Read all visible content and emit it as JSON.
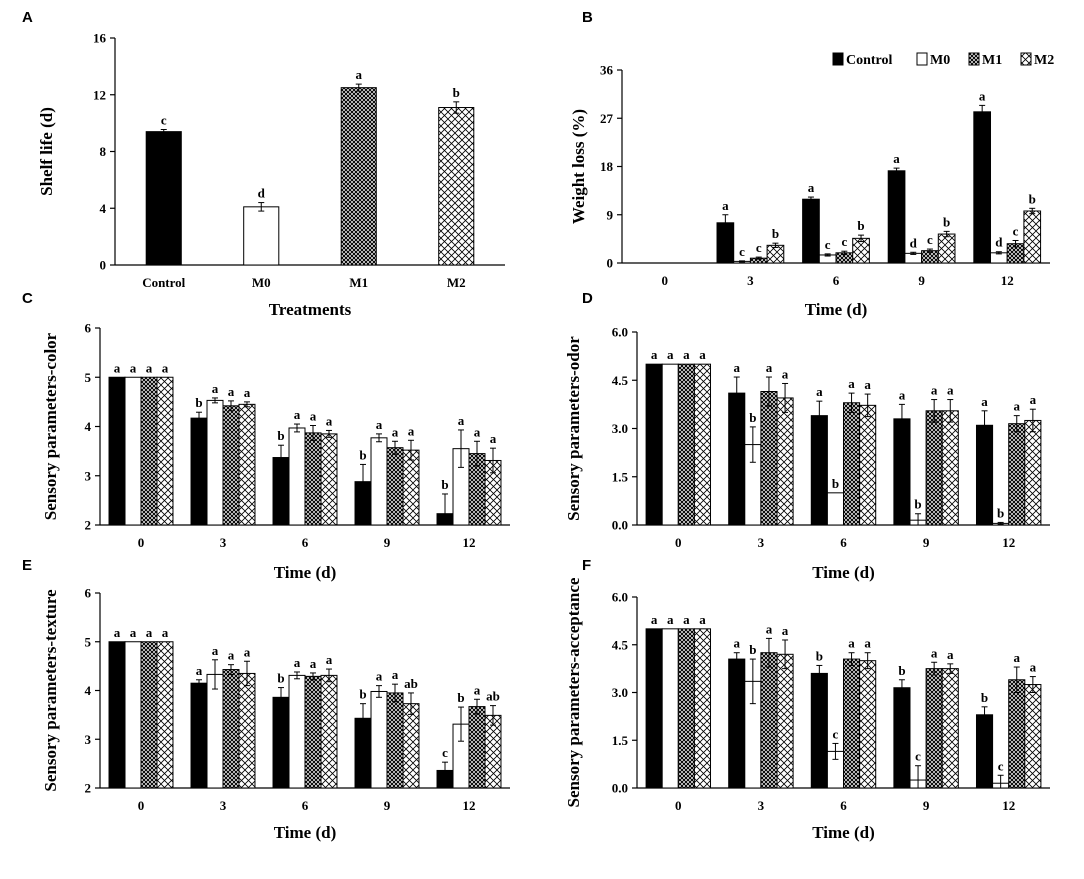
{
  "colors": {
    "control": "#000000",
    "m0": "#ffffff",
    "axis": "#000000"
  },
  "legend": [
    "Control",
    "M0",
    "M1",
    "M2"
  ],
  "chart_data": [
    {
      "id": "A",
      "type": "bar",
      "letter": "A",
      "xlabel": "Treatments",
      "ylabel": "Shelf life (d)",
      "ylim": [
        0,
        16
      ],
      "yticks": [
        "0",
        "4",
        "8",
        "12",
        "16"
      ],
      "categories": [
        "Control",
        "M0",
        "M1",
        "M2"
      ],
      "values": [
        9.4,
        4.1,
        12.5,
        11.1
      ],
      "errors": [
        0.15,
        0.3,
        0.25,
        0.4
      ],
      "labels": [
        "c",
        "d",
        "a",
        "b"
      ]
    },
    {
      "id": "B",
      "type": "bar",
      "letter": "B",
      "xlabel": "Time (d)",
      "ylabel": "Weight loss (%)",
      "ylim": [
        0,
        36
      ],
      "yticks": [
        "0",
        "9",
        "18",
        "27",
        "36"
      ],
      "categories": [
        "0",
        "3",
        "6",
        "9",
        "12"
      ],
      "series": [
        {
          "name": "Control",
          "values": [
            0,
            7.5,
            11.9,
            17.2,
            28.2
          ],
          "errors": [
            0,
            1.5,
            0.4,
            0.5,
            1.2
          ],
          "labels": [
            "",
            "a",
            "a",
            "a",
            "a"
          ]
        },
        {
          "name": "M0",
          "values": [
            0,
            0.3,
            1.5,
            1.8,
            1.9
          ],
          "errors": [
            0,
            0.1,
            0.2,
            0.2,
            0.2
          ],
          "labels": [
            "",
            "c",
            "c",
            "d",
            "d"
          ]
        },
        {
          "name": "M1",
          "values": [
            0,
            0.9,
            1.9,
            2.3,
            3.6
          ],
          "errors": [
            0,
            0.2,
            0.3,
            0.3,
            0.6
          ],
          "labels": [
            "",
            "c",
            "c",
            "c",
            "c"
          ]
        },
        {
          "name": "M2",
          "values": [
            0,
            3.3,
            4.6,
            5.4,
            9.7
          ],
          "errors": [
            0,
            0.4,
            0.6,
            0.5,
            0.5
          ],
          "labels": [
            "",
            "b",
            "b",
            "b",
            "b"
          ]
        }
      ]
    },
    {
      "id": "C",
      "type": "bar",
      "letter": "C",
      "xlabel": "Time (d)",
      "ylabel": "Sensory parameters-color",
      "ylim": [
        2,
        6
      ],
      "yticks": [
        "2",
        "3",
        "4",
        "5",
        "6"
      ],
      "categories": [
        "0",
        "3",
        "6",
        "9",
        "12"
      ],
      "series": [
        {
          "name": "Control",
          "values": [
            5,
            4.17,
            3.37,
            2.88,
            2.23
          ],
          "errors": [
            0,
            0.12,
            0.25,
            0.35,
            0.4
          ],
          "labels": [
            "a",
            "b",
            "b",
            "b",
            "b"
          ]
        },
        {
          "name": "M0",
          "values": [
            5,
            4.53,
            3.97,
            3.77,
            3.55
          ],
          "errors": [
            0,
            0.05,
            0.08,
            0.08,
            0.38
          ],
          "labels": [
            "a",
            "a",
            "a",
            "a",
            "a"
          ]
        },
        {
          "name": "M1",
          "values": [
            5,
            4.42,
            3.87,
            3.57,
            3.45
          ],
          "errors": [
            0,
            0.1,
            0.15,
            0.13,
            0.25
          ],
          "labels": [
            "a",
            "a",
            "a",
            "a",
            "a"
          ]
        },
        {
          "name": "M2",
          "values": [
            5,
            4.45,
            3.85,
            3.52,
            3.31
          ],
          "errors": [
            0,
            0.05,
            0.07,
            0.2,
            0.25
          ],
          "labels": [
            "a",
            "a",
            "a",
            "a",
            "a"
          ]
        }
      ]
    },
    {
      "id": "D",
      "type": "bar",
      "letter": "D",
      "xlabel": "Time (d)",
      "ylabel": "Sensory parameters-odor",
      "ylim": [
        0,
        6
      ],
      "yticks": [
        "0.0",
        "1.5",
        "3.0",
        "4.5",
        "6.0"
      ],
      "categories": [
        "0",
        "3",
        "6",
        "9",
        "12"
      ],
      "series": [
        {
          "name": "Control",
          "values": [
            5,
            4.1,
            3.4,
            3.3,
            3.1
          ],
          "errors": [
            0,
            0.5,
            0.45,
            0.45,
            0.45
          ],
          "labels": [
            "a",
            "a",
            "a",
            "a",
            "a"
          ]
        },
        {
          "name": "M0",
          "values": [
            5,
            2.5,
            1.0,
            0.15,
            0.05
          ],
          "errors": [
            0,
            0.55,
            0,
            0.2,
            0.03
          ],
          "labels": [
            "a",
            "b",
            "b",
            "b",
            "b"
          ]
        },
        {
          "name": "M1",
          "values": [
            5,
            4.15,
            3.8,
            3.55,
            3.15
          ],
          "errors": [
            0,
            0.45,
            0.3,
            0.35,
            0.25
          ],
          "labels": [
            "a",
            "a",
            "a",
            "a",
            "a"
          ]
        },
        {
          "name": "M2",
          "values": [
            5,
            3.95,
            3.72,
            3.55,
            3.25
          ],
          "errors": [
            0,
            0.45,
            0.35,
            0.35,
            0.35
          ],
          "labels": [
            "a",
            "a",
            "a",
            "a",
            "a"
          ]
        }
      ]
    },
    {
      "id": "E",
      "type": "bar",
      "letter": "E",
      "xlabel": "Time (d)",
      "ylabel": "Sensory parameters-texture",
      "ylim": [
        2,
        6
      ],
      "yticks": [
        "2",
        "3",
        "4",
        "5",
        "6"
      ],
      "categories": [
        "0",
        "3",
        "6",
        "9",
        "12"
      ],
      "series": [
        {
          "name": "Control",
          "values": [
            5,
            4.15,
            3.86,
            3.43,
            2.36
          ],
          "errors": [
            0,
            0.07,
            0.2,
            0.3,
            0.17
          ],
          "labels": [
            "a",
            "a",
            "b",
            "b",
            "c"
          ]
        },
        {
          "name": "M0",
          "values": [
            5,
            4.33,
            4.31,
            3.98,
            3.31
          ],
          "errors": [
            0,
            0.3,
            0.07,
            0.12,
            0.35
          ],
          "labels": [
            "a",
            "a",
            "a",
            "a",
            "b"
          ]
        },
        {
          "name": "M1",
          "values": [
            5,
            4.43,
            4.29,
            3.95,
            3.67
          ],
          "errors": [
            0,
            0.1,
            0.07,
            0.18,
            0.15
          ],
          "labels": [
            "a",
            "a",
            "a",
            "a",
            "a"
          ]
        },
        {
          "name": "M2",
          "values": [
            5,
            4.35,
            4.31,
            3.73,
            3.49
          ],
          "errors": [
            0,
            0.25,
            0.13,
            0.22,
            0.2
          ],
          "labels": [
            "a",
            "a",
            "a",
            "ab",
            "ab"
          ]
        }
      ]
    },
    {
      "id": "F",
      "type": "bar",
      "letter": "F",
      "xlabel": "Time (d)",
      "ylabel": "Sensory parameters-acceptance",
      "ylim": [
        0,
        6
      ],
      "yticks": [
        "0.0",
        "1.5",
        "3.0",
        "4.5",
        "6.0"
      ],
      "categories": [
        "0",
        "3",
        "6",
        "9",
        "12"
      ],
      "series": [
        {
          "name": "Control",
          "values": [
            5,
            4.05,
            3.6,
            3.15,
            2.3
          ],
          "errors": [
            0,
            0.2,
            0.25,
            0.25,
            0.25
          ],
          "labels": [
            "a",
            "a",
            "b",
            "b",
            "b"
          ]
        },
        {
          "name": "M0",
          "values": [
            5,
            3.35,
            1.15,
            0.25,
            0.15
          ],
          "errors": [
            0,
            0.7,
            0.25,
            0.45,
            0.25
          ],
          "labels": [
            "a",
            "b",
            "c",
            "c",
            "c"
          ]
        },
        {
          "name": "M1",
          "values": [
            5,
            4.25,
            4.05,
            3.75,
            3.4
          ],
          "errors": [
            0,
            0.45,
            0.2,
            0.2,
            0.4
          ],
          "labels": [
            "a",
            "a",
            "a",
            "a",
            "a"
          ]
        },
        {
          "name": "M2",
          "values": [
            5,
            4.2,
            4.0,
            3.75,
            3.25
          ],
          "errors": [
            0,
            0.45,
            0.25,
            0.15,
            0.25
          ],
          "labels": [
            "a",
            "a",
            "a",
            "a",
            "a"
          ]
        }
      ]
    }
  ]
}
